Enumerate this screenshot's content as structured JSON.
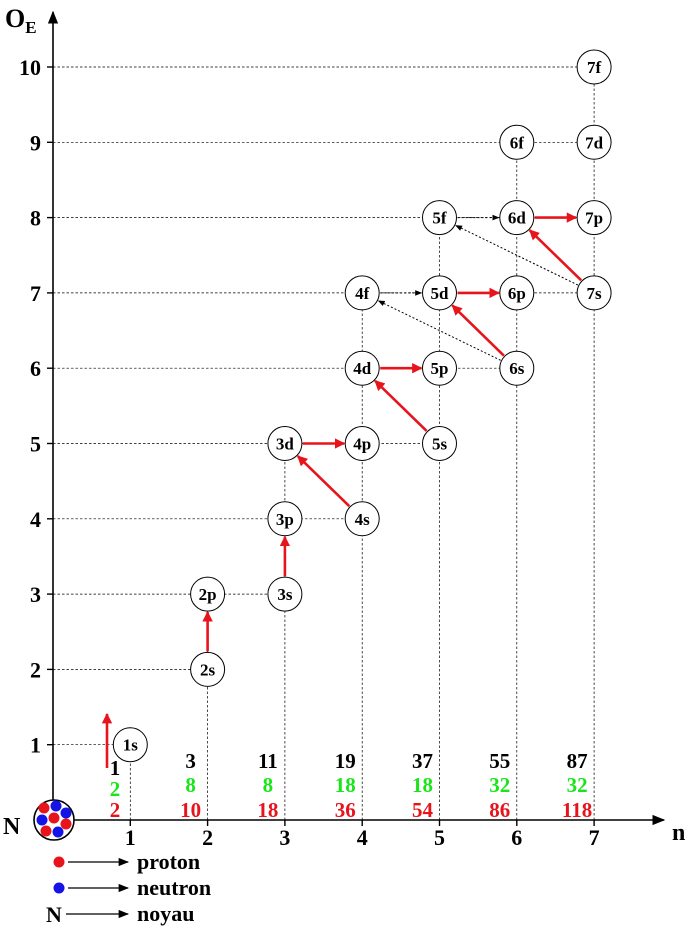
{
  "axes": {
    "y_title": "O",
    "y_title_sub": "E",
    "x_title": "n",
    "origin_label": "N",
    "y_ticks": [
      "1",
      "2",
      "3",
      "4",
      "5",
      "6",
      "7",
      "8",
      "9",
      "10"
    ],
    "x_ticks": [
      "1",
      "2",
      "3",
      "4",
      "5",
      "6",
      "7"
    ]
  },
  "orbitals": [
    {
      "label": "1s",
      "n": 1,
      "oe": 1
    },
    {
      "label": "2s",
      "n": 2,
      "oe": 2
    },
    {
      "label": "2p",
      "n": 2,
      "oe": 3
    },
    {
      "label": "3s",
      "n": 3,
      "oe": 3
    },
    {
      "label": "3p",
      "n": 3,
      "oe": 4
    },
    {
      "label": "3d",
      "n": 3,
      "oe": 5
    },
    {
      "label": "4s",
      "n": 4,
      "oe": 4
    },
    {
      "label": "4p",
      "n": 4,
      "oe": 5
    },
    {
      "label": "4d",
      "n": 4,
      "oe": 6
    },
    {
      "label": "4f",
      "n": 4,
      "oe": 7
    },
    {
      "label": "5s",
      "n": 5,
      "oe": 5
    },
    {
      "label": "5p",
      "n": 5,
      "oe": 6
    },
    {
      "label": "5d",
      "n": 5,
      "oe": 7
    },
    {
      "label": "5f",
      "n": 5,
      "oe": 8
    },
    {
      "label": "6s",
      "n": 6,
      "oe": 6
    },
    {
      "label": "6p",
      "n": 6,
      "oe": 7
    },
    {
      "label": "6d",
      "n": 6,
      "oe": 8
    },
    {
      "label": "6f",
      "n": 6,
      "oe": 9
    },
    {
      "label": "7s",
      "n": 7,
      "oe": 7
    },
    {
      "label": "7p",
      "n": 7,
      "oe": 8
    },
    {
      "label": "7d",
      "n": 7,
      "oe": 9
    },
    {
      "label": "7f",
      "n": 7,
      "oe": 10
    }
  ],
  "fill_arrows": [
    {
      "from": "2s",
      "to": "2p"
    },
    {
      "from": "3s",
      "to": "3p"
    },
    {
      "from": "4s",
      "to": "3d"
    },
    {
      "from": "3d",
      "to": "4p"
    },
    {
      "from": "5s",
      "to": "4d"
    },
    {
      "from": "4d",
      "to": "5p"
    },
    {
      "from": "6s",
      "to": "5d"
    },
    {
      "from": "5d",
      "to": "6p"
    },
    {
      "from": "7s",
      "to": "6d"
    },
    {
      "from": "6d",
      "to": "7p"
    }
  ],
  "dotted_arrows": [
    {
      "from": "6s",
      "to": "4f"
    },
    {
      "from": "4f",
      "to": "5d"
    },
    {
      "from": "7s",
      "to": "5f"
    },
    {
      "from": "5f",
      "to": "6d"
    }
  ],
  "magic_numbers": [
    {
      "n": 1,
      "black": "1",
      "green": "2",
      "red": "2"
    },
    {
      "n": 2,
      "black": "3",
      "green": "8",
      "red": "10"
    },
    {
      "n": 3,
      "black": "11",
      "green": "8",
      "red": "18"
    },
    {
      "n": 4,
      "black": "19",
      "green": "18",
      "red": "36"
    },
    {
      "n": 5,
      "black": "37",
      "green": "18",
      "red": "54"
    },
    {
      "n": 6,
      "black": "55",
      "green": "32",
      "red": "86"
    },
    {
      "n": 7,
      "black": "87",
      "green": "32",
      "red": "118"
    }
  ],
  "legend": [
    {
      "marker": "red-dot",
      "label": "proton"
    },
    {
      "marker": "blue-dot",
      "label": "neutron"
    },
    {
      "marker": "N",
      "label": "noyau"
    }
  ],
  "colors": {
    "axis": "#000000",
    "arrow": "#e8141c",
    "green_number": "#19e619",
    "red_number": "#e8141c",
    "black_number": "#000000",
    "proton": "#e8141c",
    "neutron": "#1414e6"
  }
}
